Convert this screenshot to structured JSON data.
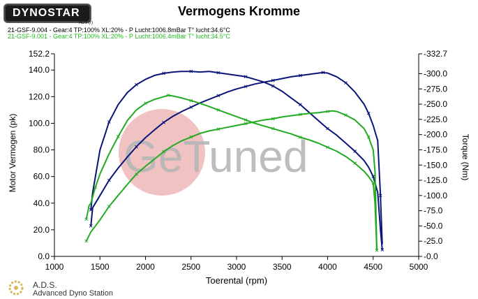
{
  "header": {
    "brand": "DYNOSTAR",
    "brand_sub": "ADS (r)",
    "title": "Vermogens Kromme",
    "runs": [
      {
        "text": "21-GSF-9.004 - Gear:4 TP:100% XL:20%    - P Lucht:1006.8mBar T° lucht:34.6°C",
        "color": "#000000"
      },
      {
        "text": "21-GSF-9.001 - Gear:4 TP:100% XL:20%    - P Lucht:1006.4mBar T° lucht:34.5°C",
        "color": "#1dbb1d"
      }
    ]
  },
  "watermark": {
    "text": "GeTuned"
  },
  "footer": {
    "name": "A.D.S.",
    "sub": "Advanced Dyno Station"
  },
  "colors": {
    "run_a": "#0a1478",
    "run_b": "#22aa22",
    "axis": "#000000"
  },
  "chart_data": {
    "type": "line",
    "title": "Vermogens Kromme",
    "xlabel": "Toerental (rpm)",
    "ylabel_left": "Motor Vermogen (pk)",
    "ylabel_right": "Torque (Nm)",
    "xlim": [
      1000,
      5000
    ],
    "ylim_left": [
      0,
      152.2
    ],
    "ylim_right": [
      0,
      332.7
    ],
    "x_ticks": [
      "1000",
      "1500",
      "2000",
      "2500",
      "3000",
      "3500",
      "4000",
      "4500",
      "5000"
    ],
    "y_left_ticks": [
      "0.0",
      "20.0",
      "40.0",
      "60.0",
      "80.0",
      "100.0",
      "120.0",
      "140.0",
      "152.2"
    ],
    "y_right_ticks": [
      "-0.0",
      "-25.0",
      "-50.0",
      "-75.0",
      "-100.0",
      "-125.0",
      "-150.0",
      "-175.0",
      "-200.0",
      "-225.0",
      "-250.0",
      "-275.0",
      "-300.0",
      "-332.7"
    ],
    "grid": false,
    "series": [
      {
        "color": "#0a1478",
        "axis": "left",
        "x": [
          1400,
          1420,
          1500,
          1600,
          1700,
          1800,
          1900,
          2000,
          2100,
          2200,
          2300,
          2400,
          2500,
          2600,
          2700,
          2800,
          2900,
          3000,
          3100,
          3200,
          3300,
          3400,
          3500,
          3600,
          3700,
          3800,
          3900,
          4000,
          4100,
          4200,
          4300,
          4400,
          4450,
          4500,
          4550,
          4580,
          4600
        ],
        "y": [
          35,
          48,
          80,
          101,
          114,
          123,
          129,
          133,
          136,
          137.5,
          138.5,
          139,
          139,
          138.5,
          139,
          138,
          137,
          136,
          135,
          133,
          131,
          128,
          124,
          119,
          114,
          108,
          102,
          96,
          91,
          85,
          79,
          72,
          67,
          60,
          48,
          20,
          5
        ]
      },
      {
        "color": "#0a1478",
        "axis": "right",
        "x": [
          1400,
          1420,
          1500,
          1600,
          1700,
          1800,
          1900,
          2000,
          2100,
          2200,
          2300,
          2400,
          2500,
          2600,
          2700,
          2800,
          2900,
          3000,
          3100,
          3200,
          3300,
          3400,
          3500,
          3600,
          3700,
          3800,
          3900,
          3950,
          4000,
          4100,
          4200,
          4300,
          4400,
          4450,
          4500,
          4550,
          4580,
          4600
        ],
        "y": [
          50,
          80,
          100,
          125,
          145,
          163,
          180,
          195,
          208,
          220,
          230,
          238,
          245,
          252,
          258,
          264,
          270,
          275,
          279,
          283,
          286,
          289,
          292,
          295,
          297,
          299,
          301,
          302,
          301,
          295,
          285,
          270,
          250,
          235,
          215,
          190,
          100,
          20
        ]
      },
      {
        "color": "#22aa22",
        "axis": "left",
        "x": [
          1350,
          1380,
          1400,
          1450,
          1500,
          1600,
          1700,
          1800,
          1900,
          2000,
          2100,
          2200,
          2250,
          2300,
          2400,
          2500,
          2600,
          2700,
          2800,
          2900,
          3000,
          3100,
          3200,
          3300,
          3400,
          3500,
          3600,
          3700,
          3800,
          3900,
          4000,
          4100,
          4200,
          4300,
          4400,
          4450,
          4500,
          4520,
          4540
        ],
        "y": [
          28,
          38,
          40,
          52,
          62,
          77,
          90,
          102,
          110,
          115,
          118,
          120,
          121,
          120.5,
          119,
          117,
          115,
          112.5,
          110,
          107.5,
          105,
          102.5,
          100,
          98,
          96,
          94,
          92,
          89.5,
          87.5,
          85,
          82,
          79,
          75,
          70,
          64,
          60,
          55,
          40,
          5
        ]
      },
      {
        "color": "#22aa22",
        "axis": "right",
        "x": [
          1350,
          1400,
          1500,
          1600,
          1700,
          1800,
          1900,
          2000,
          2100,
          2200,
          2300,
          2400,
          2500,
          2600,
          2700,
          2800,
          2900,
          3000,
          3100,
          3200,
          3300,
          3400,
          3500,
          3600,
          3700,
          3800,
          3900,
          4000,
          4050,
          4100,
          4200,
          4300,
          4400,
          4450,
          4500,
          4520,
          4540
        ],
        "y": [
          25,
          40,
          60,
          82,
          100,
          118,
          135,
          148,
          160,
          172,
          182,
          190,
          196,
          202,
          206,
          209,
          212,
          215,
          218,
          221,
          224,
          226,
          229,
          231,
          233,
          235,
          236,
          238,
          239,
          238,
          232,
          224,
          210,
          196,
          175,
          140,
          10
        ]
      }
    ]
  }
}
